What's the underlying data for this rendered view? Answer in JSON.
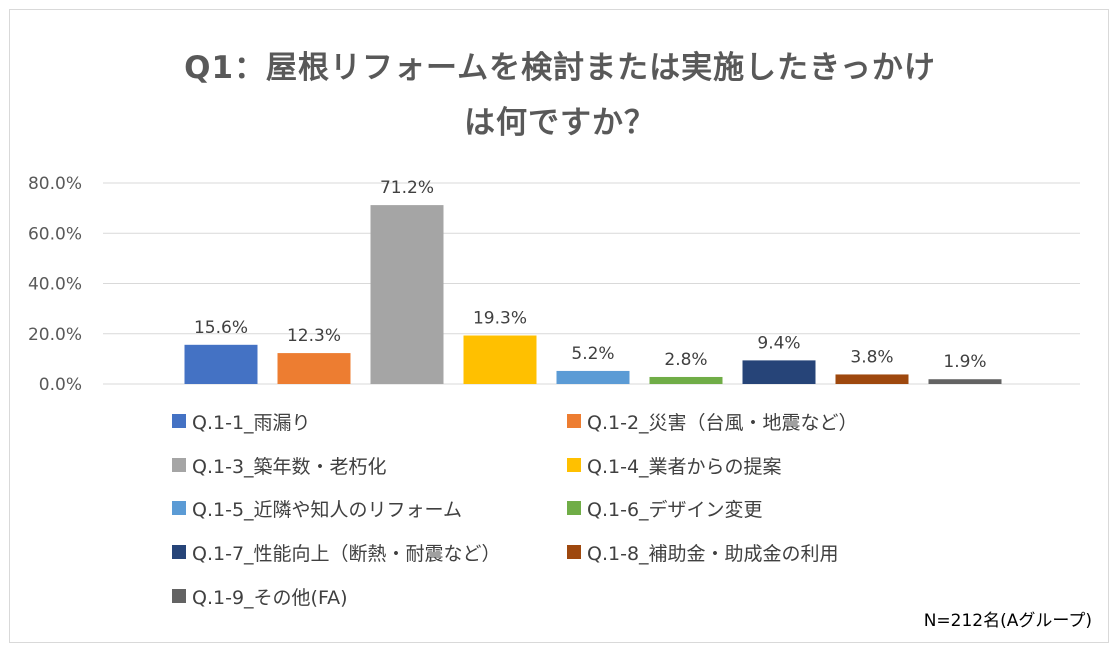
{
  "title_lines": [
    "Q1：屋根リフォームを検討または実施したきっかけ",
    "は何ですか？"
  ],
  "note": "N=212名(Aグループ)",
  "chart_data": {
    "type": "bar",
    "title": "Q1：屋根リフォームを検討または実施したきっかけは何ですか？",
    "xlabel": "",
    "ylabel": "",
    "ylim": [
      0,
      80
    ],
    "yticks": [
      "0.0%",
      "20.0%",
      "40.0%",
      "60.0%",
      "80.0%"
    ],
    "grid": true,
    "legend_position": "bottom",
    "categories": [
      "Q.1-1_雨漏り",
      "Q.1-2_災害（台風・地震など）",
      "Q.1-3_築年数・老朽化",
      "Q.1-4_業者からの提案",
      "Q.1-5_近隣や知人のリフォーム",
      "Q.1-6_デザイン変更",
      "Q.1-7_性能向上（断熱・耐震など）",
      "Q.1-8_補助金・助成金の利用",
      "Q.1-9_その他(FA)"
    ],
    "values": [
      15.6,
      12.3,
      71.2,
      19.3,
      5.2,
      2.8,
      9.4,
      3.8,
      1.9
    ],
    "value_labels": [
      "15.6%",
      "12.3%",
      "71.2%",
      "19.3%",
      "5.2%",
      "2.8%",
      "9.4%",
      "3.8%",
      "1.9%"
    ],
    "colors": [
      "#4472c4",
      "#ed7d31",
      "#a5a5a5",
      "#ffc000",
      "#5b9bd5",
      "#70ad47",
      "#264478",
      "#9e480e",
      "#636363"
    ]
  }
}
